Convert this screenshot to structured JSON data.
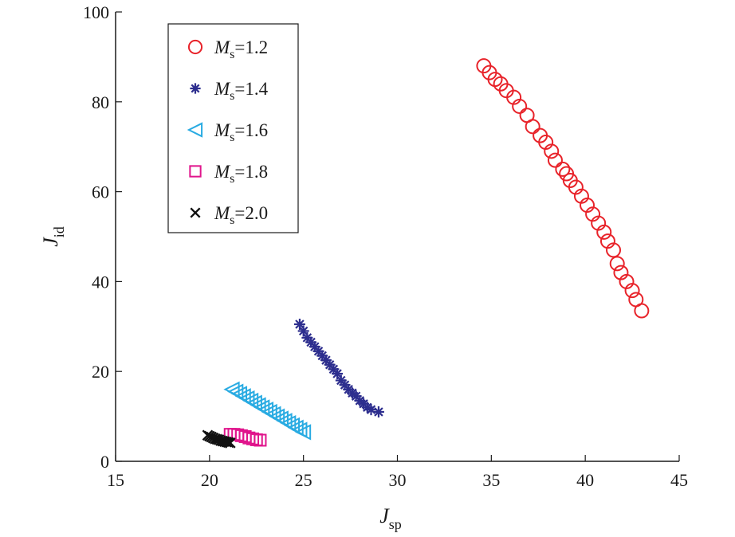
{
  "chart_data": {
    "type": "scatter",
    "xlabel": {
      "main": "J",
      "sub": "sp"
    },
    "ylabel": {
      "main": "J",
      "sub": "id"
    },
    "xlim": [
      15,
      45
    ],
    "ylim": [
      0,
      100
    ],
    "xticks": [
      "15",
      "20",
      "25",
      "30",
      "35",
      "40",
      "45"
    ],
    "yticks": [
      "0",
      "20",
      "40",
      "60",
      "80",
      "100"
    ],
    "grid": false,
    "legend_position": "top-left",
    "series": [
      {
        "name": {
          "var": "M",
          "sub": "s",
          "eq": "=1.2"
        },
        "marker": "circle",
        "color": "#e8232a",
        "x": [
          34.6,
          34.9,
          35.2,
          35.5,
          35.8,
          36.2,
          36.5,
          36.9,
          37.2,
          37.6,
          37.9,
          38.2,
          38.4,
          38.8,
          39.0,
          39.2,
          39.5,
          39.8,
          40.1,
          40.4,
          40.7,
          41.0,
          41.2,
          41.5,
          41.7,
          41.9,
          42.2,
          42.5,
          42.7,
          43.0
        ],
        "y": [
          88,
          86.5,
          85,
          84,
          82.5,
          81,
          79,
          77,
          74.5,
          72.5,
          71,
          69,
          67,
          65,
          64,
          62.5,
          61,
          59,
          57,
          55,
          53,
          51,
          49,
          47,
          44,
          42,
          40,
          38,
          36,
          33.5
        ]
      },
      {
        "name": {
          "var": "M",
          "sub": "s",
          "eq": "=1.4"
        },
        "marker": "asterisk",
        "color": "#2d2e8e",
        "x": [
          24.8,
          25.0,
          25.2,
          25.4,
          25.6,
          25.8,
          26.0,
          26.2,
          26.4,
          26.6,
          26.8,
          27.0,
          27.2,
          27.4,
          27.6,
          27.8,
          28.0,
          28.2,
          28.4,
          28.6,
          29.0
        ],
        "y": [
          30.5,
          29,
          27.5,
          26.5,
          25.5,
          24.5,
          23.5,
          22.5,
          21.5,
          20.5,
          19.5,
          18,
          17,
          16,
          15.2,
          14.5,
          13.5,
          12.8,
          12,
          11.5,
          11
        ]
      },
      {
        "name": {
          "var": "M",
          "sub": "s",
          "eq": "=1.6"
        },
        "marker": "triangle-left",
        "color": "#29abe2",
        "x": [
          21.2,
          21.4,
          21.6,
          21.8,
          22.0,
          22.2,
          22.4,
          22.6,
          22.8,
          23.0,
          23.2,
          23.4,
          23.6,
          23.8,
          24.0,
          24.2,
          24.4,
          24.6,
          24.8,
          25.0
        ],
        "y": [
          16,
          15.5,
          15,
          14.5,
          14,
          13.5,
          13,
          12.5,
          12,
          11.5,
          11,
          10.5,
          10,
          9.5,
          9,
          8.5,
          8,
          7.5,
          7,
          6.5
        ]
      },
      {
        "name": {
          "var": "M",
          "sub": "s",
          "eq": "=1.8"
        },
        "marker": "square",
        "color": "#e0158c",
        "x": [
          21.1,
          21.3,
          21.5,
          21.7,
          21.9,
          22.1,
          22.3,
          22.5,
          22.7
        ],
        "y": [
          6.0,
          6.0,
          5.9,
          5.7,
          5.5,
          5.2,
          5.0,
          4.8,
          4.7
        ]
      },
      {
        "name": {
          "var": "M",
          "sub": "s",
          "eq": "=2.0"
        },
        "marker": "x",
        "color": "#111111",
        "x": [
          19.9,
          20.0,
          20.1,
          20.2,
          20.3,
          20.4,
          20.5,
          20.6,
          20.7,
          20.8,
          20.9,
          21.0,
          21.1
        ],
        "y": [
          5.8,
          5.6,
          5.4,
          5.2,
          5.0,
          4.9,
          4.8,
          4.6,
          4.5,
          4.4,
          4.3,
          4.2,
          4.1
        ]
      }
    ]
  }
}
